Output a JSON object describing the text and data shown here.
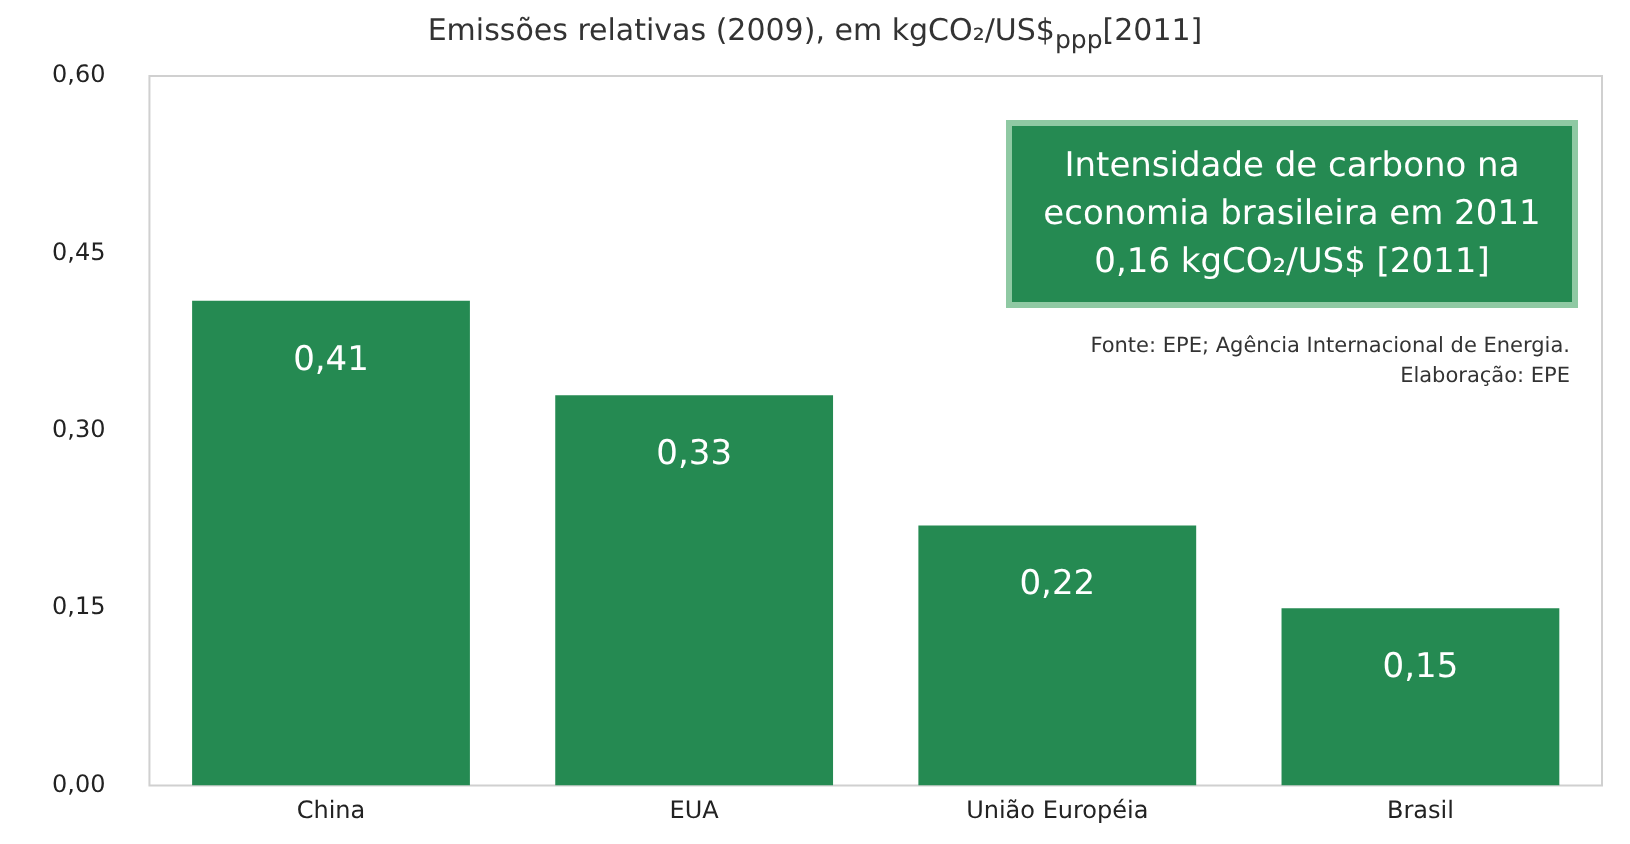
{
  "chart_data": {
    "type": "bar",
    "title": "Emissões relativas (2009), em kgCO₂/US$$_{ppp}$[2011]",
    "categories": [
      "China",
      "EUA",
      "União Européia",
      "Brasil"
    ],
    "values": [
      0.41,
      0.33,
      0.22,
      0.15
    ],
    "color": "#258a52",
    "value_labels": [
      "0,41",
      "0,33",
      "0,22",
      "0,15"
    ],
    "ylim": [
      0,
      0.6
    ],
    "yticks": [
      {
        "value": 0,
        "label": "0,00"
      },
      {
        "value": 0.15,
        "label": "0,15"
      },
      {
        "value": 0.3,
        "label": "0,30"
      },
      {
        "value": 0.45,
        "label": "0,45"
      },
      {
        "value": 0.6,
        "label": "0,60"
      }
    ],
    "grid": false,
    "legend": false,
    "annotations": [
      "Intensidade de carbono na economia brasileira em 2011",
      "0,16 kgCO₂/US$ [2011]",
      "Fonte: EPE; Agência Internacional de Energia.",
      "Elaboração: EPE"
    ]
  }
}
